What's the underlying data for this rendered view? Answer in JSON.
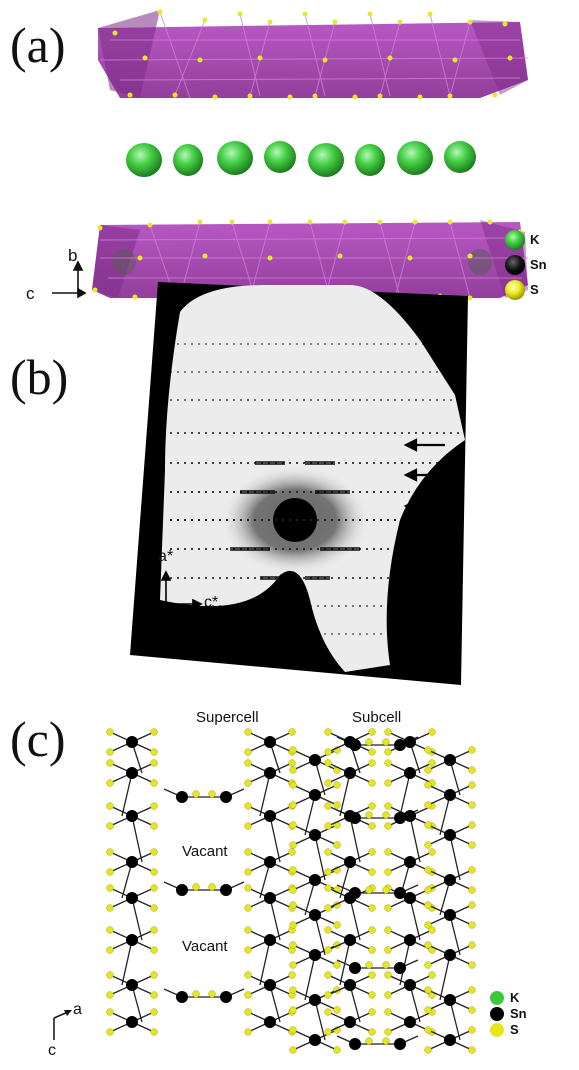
{
  "panels": {
    "a": {
      "label": "(a)",
      "axes": {
        "b": "b",
        "c": "c"
      },
      "legend": [
        {
          "symbol": "K",
          "color": "#3cc83c"
        },
        {
          "symbol": "Sn",
          "color": "#000000"
        },
        {
          "symbol": "S",
          "color": "#e6e61e"
        }
      ]
    },
    "b": {
      "label": "(b)",
      "axes": {
        "a_star": "a*",
        "c_star": "c*"
      }
    },
    "c": {
      "label": "(c)",
      "headings": {
        "supercell": "Supercell",
        "subcell": "Subcell"
      },
      "vacant_labels": [
        "Vacant",
        "Vacant"
      ],
      "axes": {
        "a": "a",
        "c": "c"
      },
      "legend": [
        {
          "symbol": "K",
          "color": "#3cc83c"
        },
        {
          "symbol": "Sn",
          "color": "#000000"
        },
        {
          "symbol": "S",
          "color": "#e6e61e"
        }
      ]
    }
  },
  "colors": {
    "octahedra": "#a43fb0",
    "octahedra_dark": "#7d2b87",
    "potassium": "#3cc83c",
    "tin": "#000000",
    "sulfur": "#e6e61e",
    "diffraction_bg": "#ececec"
  }
}
